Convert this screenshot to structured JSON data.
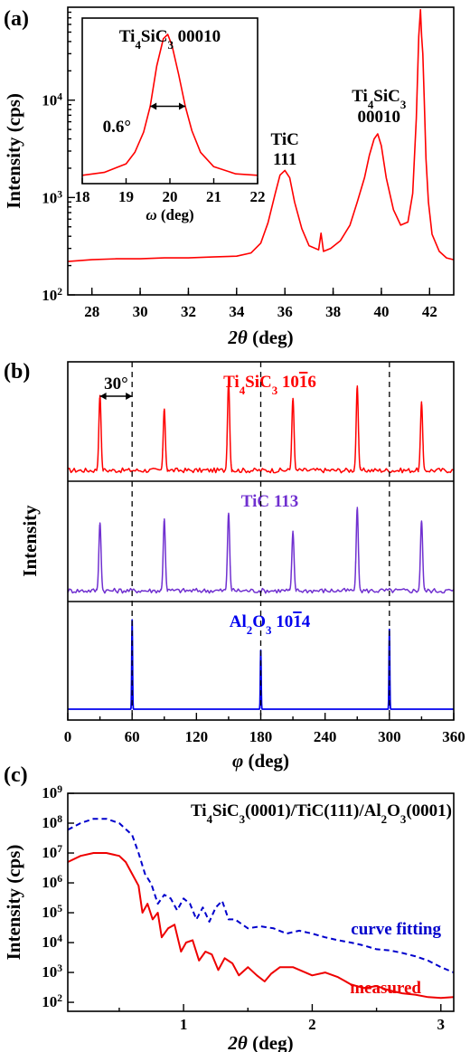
{
  "chart_data": [
    {
      "panel": "(a)",
      "type": "line",
      "xlabel": "2θ (deg)",
      "ylabel": "Intensity (cps)",
      "xlim": [
        27,
        43
      ],
      "ylim": [
        100,
        90000
      ],
      "yscale": "log",
      "xticks": [
        28,
        30,
        32,
        34,
        36,
        38,
        40,
        42
      ],
      "yticks": [
        {
          "v": 100,
          "base": "10",
          "exp": "2"
        },
        {
          "v": 1000,
          "base": "10",
          "exp": "3"
        },
        {
          "v": 10000,
          "base": "10",
          "exp": "4"
        }
      ],
      "color": "#ff0000",
      "x": [
        27.0,
        28.0,
        29.0,
        30.0,
        31.0,
        32.0,
        33.0,
        34.0,
        34.6,
        35.0,
        35.3,
        35.6,
        35.8,
        36.0,
        36.2,
        36.4,
        36.7,
        37.0,
        37.4,
        37.5,
        37.6,
        37.9,
        38.3,
        38.7,
        39.0,
        39.3,
        39.5,
        39.7,
        39.85,
        40.0,
        40.2,
        40.5,
        40.8,
        41.1,
        41.3,
        41.45,
        41.55,
        41.62,
        41.67,
        41.72,
        41.78,
        41.85,
        41.95,
        42.1,
        42.4,
        42.7,
        43.0
      ],
      "y": [
        220,
        230,
        235,
        235,
        240,
        240,
        245,
        250,
        270,
        340,
        550,
        1100,
        1700,
        1900,
        1600,
        900,
        480,
        320,
        290,
        430,
        280,
        300,
        360,
        520,
        900,
        1600,
        2700,
        4000,
        4500,
        3400,
        1600,
        750,
        520,
        560,
        1100,
        6500,
        45000,
        85000,
        45000,
        30000,
        10000,
        2500,
        900,
        420,
        280,
        240,
        230
      ],
      "inset": {
        "title": "Ti4SiC3 00010",
        "fwhm_label": "0.6°",
        "xlabel": "ω (deg)",
        "xlim": [
          18,
          22
        ],
        "xticks": [
          18,
          19,
          20,
          21,
          22
        ],
        "x": [
          18.0,
          18.5,
          19.0,
          19.2,
          19.4,
          19.55,
          19.7,
          19.85,
          19.95,
          20.05,
          20.2,
          20.35,
          20.5,
          20.7,
          21.0,
          21.5,
          22.0
        ],
        "y": [
          0.02,
          0.04,
          0.1,
          0.18,
          0.32,
          0.5,
          0.78,
          0.97,
          1.0,
          0.92,
          0.72,
          0.5,
          0.33,
          0.18,
          0.08,
          0.03,
          0.02
        ]
      },
      "annotations": [
        {
          "label": [
            "TiC",
            "111"
          ],
          "x": 36.0
        },
        {
          "label": [
            "Ti4SiC3",
            "00010"
          ],
          "x": 39.9
        }
      ]
    },
    {
      "panel": "(b)",
      "type": "line",
      "xlabel": "φ (deg)",
      "ylabel": "Intensity",
      "xlim": [
        0,
        360
      ],
      "xticks": [
        0,
        60,
        120,
        180,
        240,
        300,
        360
      ],
      "dashed_lines_x": [
        60,
        180,
        300
      ],
      "spacing_label": "30°",
      "series": [
        {
          "name": "Ti4SiC3 10-16",
          "color": "#ff0000",
          "peaks_x": [
            30,
            90,
            150,
            210,
            270,
            330
          ],
          "heights": [
            0.78,
            0.64,
            0.92,
            0.75,
            0.88,
            0.7
          ]
        },
        {
          "name": "TiC 113",
          "color": "#7030d0",
          "peaks_x": [
            30,
            90,
            150,
            210,
            270,
            330
          ],
          "heights": [
            0.7,
            0.74,
            0.8,
            0.6,
            0.86,
            0.72
          ]
        },
        {
          "name": "Al2O3 10-14",
          "color": "#0000ee",
          "peaks_x": [
            60,
            180,
            300
          ],
          "heights": [
            0.94,
            0.62,
            0.84
          ]
        }
      ]
    },
    {
      "panel": "(c)",
      "type": "line",
      "title": "Ti4SiC3(0001)/TiC(111)/Al2O3(0001)",
      "xlabel": "2θ (deg)",
      "ylabel": "Intensity (cps)",
      "xlim": [
        0.1,
        3.1
      ],
      "ylim": [
        50,
        1000000000
      ],
      "yscale": "log",
      "xticks": [
        1,
        2,
        3
      ],
      "yticks": [
        {
          "v": 100,
          "base": "10",
          "exp": "2"
        },
        {
          "v": 1000,
          "base": "10",
          "exp": "3"
        },
        {
          "v": 10000,
          "base": "10",
          "exp": "4"
        },
        {
          "v": 100000,
          "base": "10",
          "exp": "5"
        },
        {
          "v": 1000000,
          "base": "10",
          "exp": "6"
        },
        {
          "v": 10000000,
          "base": "10",
          "exp": "7"
        },
        {
          "v": 100000000,
          "base": "10",
          "exp": "8"
        },
        {
          "v": 1000000000,
          "base": "10",
          "exp": "9"
        }
      ],
      "series": [
        {
          "name": "curve fitting",
          "color": "#0000cc",
          "style": "dashed",
          "x": [
            0.1,
            0.2,
            0.3,
            0.4,
            0.5,
            0.6,
            0.65,
            0.7,
            0.75,
            0.8,
            0.85,
            0.9,
            0.95,
            1.0,
            1.05,
            1.1,
            1.15,
            1.2,
            1.25,
            1.3,
            1.35,
            1.4,
            1.5,
            1.6,
            1.7,
            1.8,
            1.9,
            2.0,
            2.1,
            2.2,
            2.3,
            2.4,
            2.5,
            2.6,
            2.7,
            2.8,
            2.9,
            3.0,
            3.1
          ],
          "y": [
            60000000,
            100000000,
            140000000,
            140000000,
            100000000,
            40000000,
            10000000,
            2000000,
            900000,
            200000,
            400000,
            300000,
            120000,
            300000,
            200000,
            60000,
            150000,
            50000,
            150000,
            250000,
            60000,
            60000,
            30000,
            35000,
            30000,
            20000,
            25000,
            20000,
            15000,
            12000,
            10000,
            8000,
            6000,
            5500,
            4500,
            3500,
            2500,
            1500,
            1000
          ]
        },
        {
          "name": "measured",
          "color": "#ee0000",
          "style": "solid",
          "x": [
            0.1,
            0.2,
            0.3,
            0.4,
            0.5,
            0.55,
            0.6,
            0.65,
            0.68,
            0.72,
            0.76,
            0.8,
            0.83,
            0.88,
            0.93,
            0.98,
            1.02,
            1.07,
            1.12,
            1.17,
            1.22,
            1.27,
            1.32,
            1.38,
            1.43,
            1.5,
            1.57,
            1.63,
            1.68,
            1.75,
            1.85,
            2.0,
            2.1,
            2.2,
            2.3,
            2.4,
            2.5,
            2.6,
            2.7,
            2.8,
            2.9,
            3.0,
            3.1
          ],
          "y": [
            5000000,
            8000000,
            10000000,
            10000000,
            8000000,
            5000000,
            2000000,
            800000,
            100000,
            200000,
            60000,
            100000,
            15000,
            30000,
            40000,
            5000,
            10000,
            12000,
            2500,
            5000,
            4000,
            1200,
            3000,
            2000,
            800,
            1500,
            800,
            500,
            900,
            1500,
            1500,
            800,
            1000,
            700,
            400,
            300,
            350,
            250,
            200,
            180,
            150,
            140,
            150
          ]
        }
      ]
    }
  ]
}
